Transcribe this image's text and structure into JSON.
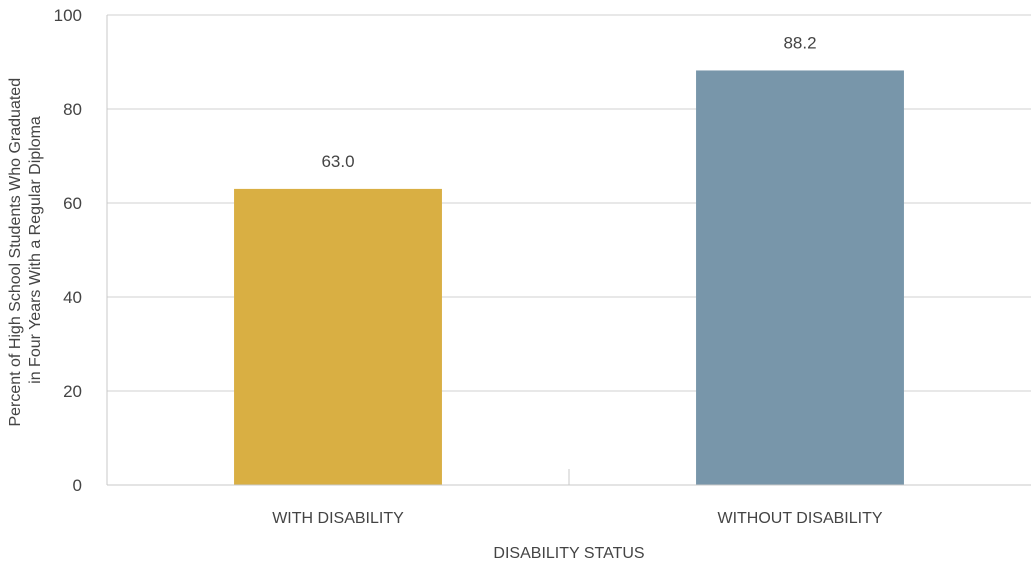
{
  "chart_data": {
    "type": "bar",
    "title": "",
    "xlabel": "DISABILITY STATUS",
    "ylabel_lines": [
      "Percent of High School Students Who Graduated",
      "in Four Years With a Regular Diploma"
    ],
    "categories": [
      "WITH DISABILITY",
      "WITHOUT DISABILITY"
    ],
    "values": [
      63.0,
      88.2
    ],
    "value_labels": [
      "63.0",
      "88.2"
    ],
    "bar_colors": [
      "#D9AF43",
      "#7896AA"
    ],
    "ylim": [
      0,
      100
    ],
    "yticks": [
      0,
      20,
      40,
      60,
      80,
      100
    ],
    "grid": true,
    "legend": "none"
  }
}
